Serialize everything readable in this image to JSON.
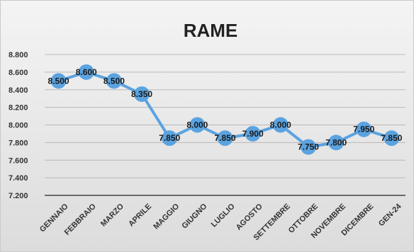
{
  "chart_data": {
    "type": "line",
    "title": "RAME",
    "xlabel": "",
    "ylabel": "",
    "categories": [
      "GENNAIO",
      "FEBBRAIO",
      "MARZO",
      "APRILE",
      "MAGGIO",
      "GIUGNO",
      "LUGLIO",
      "AGOSTO",
      "SETTEMBRE",
      "OTTOBRE",
      "NOVEMBRE",
      "DICEMBRE",
      "GEN-24"
    ],
    "series": [
      {
        "values": [
          8.5,
          8.6,
          8.5,
          8.35,
          7.85,
          8.0,
          7.85,
          7.9,
          8.0,
          7.75,
          7.8,
          7.95,
          7.85
        ],
        "data_labels": [
          "8.500",
          "8.600",
          "8.500",
          "8.350",
          "7.850",
          "8.000",
          "7.850",
          "7.900",
          "8.000",
          "7.750",
          "7.800",
          "7.950",
          "7.850"
        ],
        "color": "#5ba3e0"
      }
    ],
    "ylim": [
      7.2,
      8.8
    ],
    "yticks": [
      7.2,
      7.4,
      7.6,
      7.8,
      8.0,
      8.2,
      8.4,
      8.6,
      8.8
    ],
    "ytick_labels": [
      "7.200",
      "7.400",
      "7.600",
      "7.800",
      "8.000",
      "8.200",
      "8.400",
      "8.600",
      "8.800"
    ],
    "grid": true,
    "legend": "none"
  }
}
